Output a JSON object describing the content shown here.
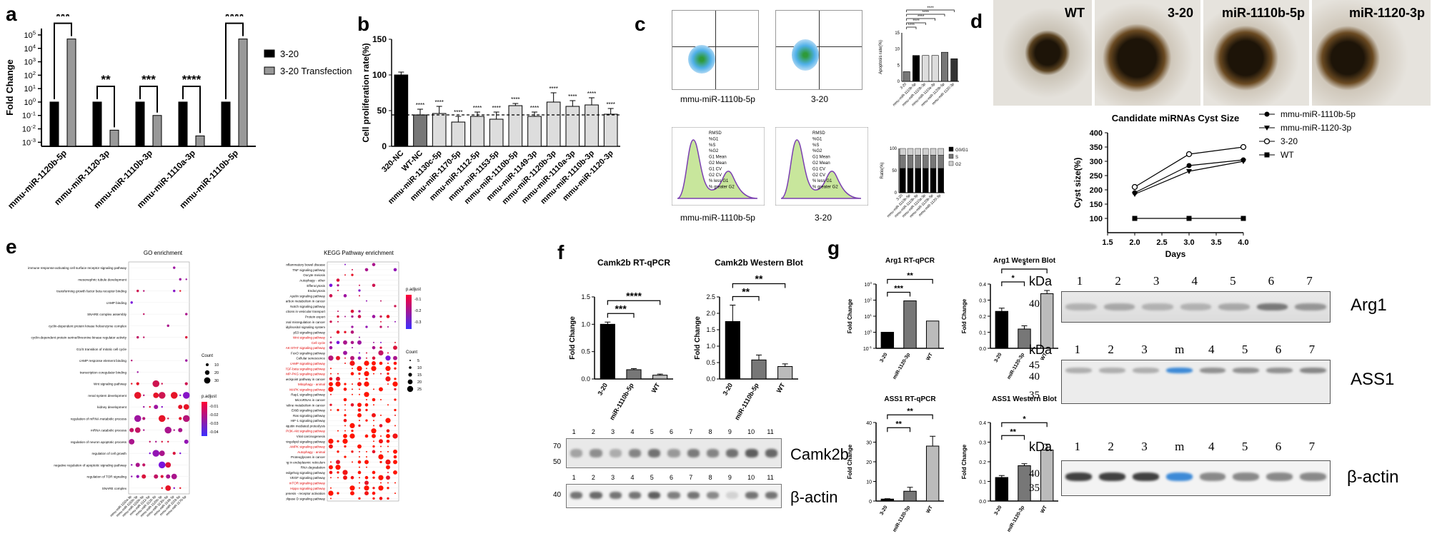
{
  "panel_letters": [
    "a",
    "b",
    "c",
    "d",
    "e",
    "f",
    "g"
  ],
  "chart_data": [
    {
      "panel": "a",
      "type": "bar",
      "log_scale": true,
      "ylabel": "Fold Change",
      "ytick_labels": [
        "10^-3",
        "10^-2",
        "10^-1",
        "10^0",
        "10^1",
        "10^2",
        "10^3",
        "10^4",
        "10^5"
      ],
      "ylim": [
        0.0005,
        300000
      ],
      "categories": [
        "mmu-miR-1120b-5p",
        "mmu-miR-1120-3p",
        "mmu-miR-1110b-3p",
        "mmu-miR-1110a-3p",
        "mmu-miR-1110b-5p"
      ],
      "series": [
        {
          "name": "3-20",
          "color": "#000000",
          "values": [
            1,
            1,
            1,
            1,
            1
          ]
        },
        {
          "name": "3-20 Transfection",
          "color": "#999999",
          "values": [
            50000,
            0.008,
            0.1,
            0.003,
            50000
          ]
        }
      ],
      "significance": [
        "***",
        "**",
        "***",
        "****",
        "****"
      ],
      "legend_position": "right"
    },
    {
      "panel": "b",
      "type": "bar",
      "ylabel": "Cell proliferation rate(%)",
      "ylim": [
        0,
        150
      ],
      "yticks": [
        "0",
        "50",
        "100",
        "150"
      ],
      "reference_line": 44,
      "categories": [
        "320-NC",
        "WT-NC",
        "mmu-miR-1130c-5p",
        "mmu-miR-1170-5p",
        "mmu-miR-1112-5p",
        "mmu-miR-1153-5p",
        "mmu-miR-1110b-5p",
        "mmu-miR-1149-3p",
        "mmu-miR-1120b-3p",
        "mmu-miR-1110a-3p",
        "mmu-miR-1110b-3p",
        "mmu-miR-1120-3p"
      ],
      "values": [
        100,
        44,
        46,
        34,
        42,
        38,
        57,
        42,
        62,
        56,
        58,
        45
      ],
      "errors": [
        4,
        8,
        10,
        8,
        6,
        10,
        3,
        6,
        13,
        8,
        10,
        8
      ],
      "colors": [
        "#000000",
        "#777777",
        "#dddddd",
        "#dddddd",
        "#dddddd",
        "#dddddd",
        "#dddddd",
        "#dddddd",
        "#dddddd",
        "#dddddd",
        "#dddddd",
        "#dddddd"
      ],
      "significance": [
        "",
        "****",
        "****",
        "****",
        "****",
        "****",
        "****",
        "****",
        "****",
        "****",
        "****",
        "****"
      ]
    },
    {
      "panel": "c-apoptosis",
      "type": "bar",
      "ylabel": "Apoptosis rate(%)",
      "ylim": [
        0,
        15
      ],
      "yticks": [
        "0",
        "5",
        "10",
        "15"
      ],
      "categories": [
        "3-20",
        "mmu-miR-1110b-5p",
        "mmu-miR-1110b-3p",
        "mmu-miR-1110a-3p",
        "mmu-miR-1120b-5p",
        "mmu-miR-1120-3p"
      ],
      "values": [
        3,
        8,
        8,
        8,
        9,
        7
      ],
      "colors": [
        "#777777",
        "#000000",
        "#dddddd",
        "#dddddd",
        "#777777",
        "#333333"
      ],
      "significance": [
        "****",
        "****",
        "****",
        "****",
        "****"
      ]
    },
    {
      "panel": "c-cellcycle",
      "type": "bar",
      "stacked": true,
      "ylabel": "Ratio(%)",
      "ylim": [
        0,
        100
      ],
      "yticks": [
        "0",
        "50",
        "100"
      ],
      "categories": [
        "3-20",
        "mmu-miR-1110b-5p",
        "mmu-miR-1110b-3p",
        "mmu-miR-1110a-3p",
        "mmu-miR-1120b-5p",
        "mmu-miR-1120-3p"
      ],
      "series": [
        {
          "name": "G0/G1",
          "color": "#000000",
          "values": [
            55,
            55,
            55,
            55,
            55,
            55
          ]
        },
        {
          "name": "S",
          "color": "#777777",
          "values": [
            30,
            30,
            30,
            30,
            30,
            30
          ]
        },
        {
          "name": "G2",
          "color": "#cfcfcf",
          "values": [
            15,
            15,
            15,
            15,
            15,
            15
          ]
        }
      ]
    },
    {
      "panel": "d",
      "type": "line",
      "title": "Candidate miRNAs Cyst Size",
      "xlabel": "Days",
      "ylabel": "Cyst size(%)",
      "xlim": [
        1.5,
        4.0
      ],
      "ylim": [
        50,
        400
      ],
      "xticks": [
        "1.5",
        "2.0",
        "2.5",
        "3.0",
        "3.5",
        "4.0"
      ],
      "yticks": [
        "100",
        "150",
        "200",
        "250",
        "300",
        "350",
        "400"
      ],
      "x": [
        2,
        3,
        4
      ],
      "series": [
        {
          "name": "mmu-miR-1110b-5p",
          "marker": "circle-filled",
          "values": [
            190,
            285,
            305
          ]
        },
        {
          "name": "mmu-miR-1120-3p",
          "marker": "triangle-down",
          "values": [
            185,
            265,
            300
          ]
        },
        {
          "name": "3-20",
          "marker": "circle-open",
          "values": [
            210,
            325,
            350
          ]
        },
        {
          "name": "WT",
          "marker": "square",
          "values": [
            100,
            100,
            100
          ]
        }
      ]
    },
    {
      "panel": "f-rtqpcr",
      "type": "bar",
      "title": "Camk2b RT-qPCR",
      "ylabel": "Fold Change",
      "ylim": [
        0,
        1.5
      ],
      "yticks": [
        "0.0",
        "0.5",
        "1.0",
        "1.5"
      ],
      "categories": [
        "3-20",
        "miR-1110b-5p",
        "WT"
      ],
      "values": [
        1.0,
        0.17,
        0.07
      ],
      "errors": [
        0.04,
        0.02,
        0.02
      ],
      "colors": [
        "#000000",
        "#777777",
        "#bbbbbb"
      ],
      "significance": [
        "***",
        "****"
      ]
    },
    {
      "panel": "f-western",
      "type": "bar",
      "title": "Camk2b Western Blot",
      "ylabel": "Fold Change",
      "ylim": [
        0,
        2.5
      ],
      "yticks": [
        "0.0",
        "0.5",
        "1.0",
        "1.5",
        "2.0",
        "2.5"
      ],
      "categories": [
        "3-20",
        "miR-1110b-5p",
        "WT"
      ],
      "values": [
        1.75,
        0.58,
        0.38
      ],
      "errors": [
        0.5,
        0.15,
        0.08
      ],
      "colors": [
        "#000000",
        "#777777",
        "#bbbbbb"
      ],
      "significance": [
        "**",
        "**"
      ]
    },
    {
      "panel": "g-arg1-rtqpcr",
      "type": "bar",
      "log_scale": true,
      "title": "Arg1 RT-qPCR",
      "ylabel": "Fold Change",
      "ylim": [
        0.1,
        1000
      ],
      "ytick_labels": [
        "10^-1",
        "10^0",
        "10^1",
        "10^2",
        "10^3"
      ],
      "categories": [
        "3-20",
        "miR-1120-3p",
        "WT"
      ],
      "values": [
        1,
        90,
        5
      ],
      "colors": [
        "#000000",
        "#777777",
        "#bbbbbb"
      ],
      "significance": [
        "***",
        "**"
      ]
    },
    {
      "panel": "g-arg1-western",
      "type": "bar",
      "title": "Arg1 Western Blot",
      "ylabel": "Fold Change",
      "ylim": [
        0,
        0.4
      ],
      "yticks": [
        "0.0",
        "0.1",
        "0.2",
        "0.3",
        "0.4"
      ],
      "categories": [
        "3-20",
        "miR-1120-3p",
        "WT"
      ],
      "values": [
        0.23,
        0.12,
        0.34
      ],
      "errors": [
        0.02,
        0.02,
        0.02
      ],
      "colors": [
        "#000000",
        "#777777",
        "#bbbbbb"
      ],
      "significance": [
        "*",
        "*"
      ]
    },
    {
      "panel": "g-ass1-rtqpcr",
      "type": "bar",
      "title": "ASS1 RT-qPCR",
      "ylabel": "Fold Change",
      "ylim": [
        0,
        40
      ],
      "yticks": [
        "0",
        "10",
        "20",
        "30",
        "40"
      ],
      "categories": [
        "3-20",
        "miR-1120-3p",
        "WT"
      ],
      "values": [
        1,
        5,
        28
      ],
      "errors": [
        0.2,
        2,
        5
      ],
      "colors": [
        "#000000",
        "#777777",
        "#bbbbbb"
      ],
      "significance": [
        "**",
        "**"
      ]
    },
    {
      "panel": "g-ass1-western",
      "type": "bar",
      "title": "ASS1 Western Blot",
      "ylabel": "Fold Change",
      "ylim": [
        0,
        0.4
      ],
      "yticks": [
        "0.0",
        "0.1",
        "0.2",
        "0.3",
        "0.4"
      ],
      "categories": [
        "3-20",
        "miR-1120-3p",
        "WT"
      ],
      "values": [
        0.12,
        0.18,
        0.26
      ],
      "errors": [
        0.01,
        0.01,
        0.03
      ],
      "colors": [
        "#000000",
        "#777777",
        "#bbbbbb"
      ],
      "significance": [
        "**",
        "*"
      ]
    }
  ],
  "panel_c": {
    "flow_labels": [
      "mmu-miR-1110b-5p",
      "3-20"
    ],
    "cellcycle_labels": [
      "mmu-miR-1110b-5p",
      "3-20"
    ],
    "stats_keys": [
      "RMSD",
      "%G1",
      "%S",
      "%G2",
      "G1 Mean",
      "G2 Mean",
      "G1 CV",
      "G2 CV",
      "% less G1",
      "% greater G2"
    ]
  },
  "panel_d_photos": [
    "WT",
    "3-20",
    "miR-1110b-5p",
    "miR-1120-3p"
  ],
  "panel_e": {
    "go": {
      "title": "GO enrichment",
      "terms": [
        "immune response-activating cell surface receptor signaling pathway",
        "mesonephric tubule development",
        "transforming growth factor beta receptor binding",
        "cAMP binding",
        "SNARE complex assembly",
        "cyclin-dependent protein kinase holoenzyme complex",
        "cyclin-dependent protein serine/threonine kinase regulator activity",
        "G1/S transition of mitotic cell cycle",
        "cAMP response element binding",
        "transcription coregulator binding",
        "Wnt signaling pathway",
        "renal system development",
        "kidney development",
        "regulation of mRNA metabolic process",
        "mRNA catabolic process",
        "regulation of neuron apoptotic process",
        "regulation of cell growth",
        "negative regulation of apoptotic signaling pathway",
        "regulation of TOR signaling",
        "SNARE complex"
      ],
      "columns": [
        "mmu-miR-1110a-3p",
        "mmu-miR-1110b-3p",
        "mmu-miR-1110b-5p",
        "mmu-miR-1112-5p",
        "mmu-miR-1120-3p",
        "mmu-miR-1120b-3p",
        "mmu-miR-1130c-5p",
        "mmu-miR-1149-3p",
        "mmu-miR-1153-5p",
        "mmu-miR-1170-5p"
      ],
      "count_legend": {
        "title": "Count",
        "values": [
          "10",
          "20",
          "30"
        ]
      },
      "padj_legend": {
        "title": "p.adjust",
        "values": [
          "-0.01",
          "-0.02",
          "-0.03",
          "-0.04"
        ]
      }
    },
    "kegg": {
      "title": "KEGG Pathway enrichment",
      "terms": [
        "Inflammatory bowel disease",
        "TNF signaling pathway",
        "Oocyte meiosis",
        "Autophagy - other",
        "Efferocytosis",
        "Endocytosis",
        "Apelin signaling pathway",
        "Central carbon metabolism in cancer",
        "Notch signaling pathway",
        "SNARE interactions in vesicular transport",
        "Protein export",
        "Transcriptional misregulation in cancer",
        "Phosphatidylinositol signaling system",
        "p53 signaling pathway",
        "Wnt signaling pathway",
        "Cell cycle",
        "JAK-STAT signaling pathway",
        "FoxO signaling pathway",
        "Cellular senescence",
        "cAMP signaling pathway",
        "TGF-beta signaling pathway",
        "cGMP-PKG signaling pathway",
        "PD-L1 expression and PD-1 checkpoint pathway in cancer",
        "Mitophagy - animal",
        "MAPK signaling pathway",
        "Rap1 signaling pathway",
        "MicroRNAs in cancer",
        "Choline metabolism in cancer",
        "ErbB signaling pathway",
        "Ras signaling pathway",
        "HIF-1 signaling pathway",
        "Ubiquitin mediated proteolysis",
        "PI3K-Akt signaling pathway",
        "Viral carcinogenesis",
        "Sphingolipid signaling pathway",
        "AMPK signaling pathway",
        "Autophagy - animal",
        "Proteoglycans in cancer",
        "Protein processing in endoplasmic reticulum",
        "RNA degradation",
        "Hedgehog signaling pathway",
        "VEGF signaling pathway",
        "mTOR signaling pathway",
        "Hippo signaling pathway",
        "Chemical carcinogenesis - receptor activation",
        "Phospholipase D signaling pathway"
      ],
      "red_terms": [
        "Wnt signaling pathway",
        "Cell cycle",
        "JAK-STAT signaling pathway",
        "cAMP signaling pathway",
        "TGF-beta signaling pathway",
        "cGMP-PKG signaling pathway",
        "Mitophagy - animal",
        "MAPK signaling pathway",
        "PI3K-Akt signaling pathway",
        "AMPK signaling pathway",
        "Autophagy - animal",
        "mTOR signaling pathway",
        "Hippo signaling pathway"
      ],
      "count_legend": {
        "title": "Count",
        "values": [
          "5",
          "10",
          "15",
          "20",
          "25"
        ]
      },
      "padj_legend": {
        "title": "p.adjust",
        "values": [
          "-0.1",
          "-0.2",
          "-0.3"
        ]
      }
    }
  },
  "panel_f_blot": {
    "lanes": [
      "1",
      "2",
      "3",
      "4",
      "5",
      "6",
      "7",
      "8",
      "9",
      "10",
      "11"
    ],
    "mw_top": [
      "70",
      "50"
    ],
    "mw_bottom": [
      "40"
    ],
    "labels": [
      "Camk2b",
      "β-actin"
    ]
  },
  "panel_g_blots": [
    {
      "label": "Arg1",
      "kda": "kDa",
      "lanes": [
        "1",
        "2",
        "3",
        "4",
        "5",
        "6",
        "7"
      ],
      "mw": [
        "40"
      ]
    },
    {
      "label": "ASS1",
      "kda": "kDa",
      "lanes": [
        "1",
        "2",
        "3",
        "m",
        "4",
        "5",
        "6",
        "7"
      ],
      "mw": [
        "45",
        "40",
        "35"
      ]
    },
    {
      "label": "β-actin",
      "kda": "kDa",
      "lanes": [
        "1",
        "2",
        "3",
        "m",
        "4",
        "5",
        "6",
        "7"
      ],
      "mw": [
        "40",
        "35"
      ]
    }
  ]
}
